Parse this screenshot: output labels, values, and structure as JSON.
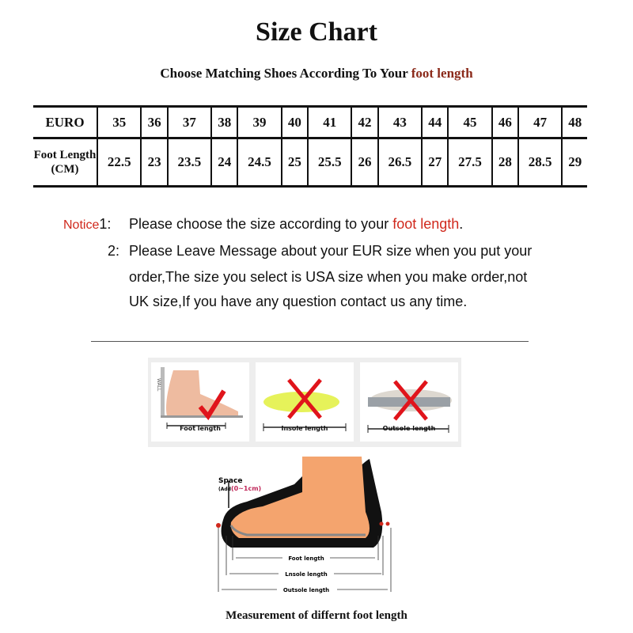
{
  "title": "Size Chart",
  "subtitle": {
    "text": "Choose Matching Shoes According To Your ",
    "highlight": "foot length"
  },
  "table": {
    "row_labels": [
      "EURO",
      "Foot Length (CM)"
    ],
    "euro": [
      "35",
      "36",
      "37",
      "38",
      "39",
      "40",
      "41",
      "42",
      "43",
      "44",
      "45",
      "46",
      "47",
      "48"
    ],
    "foot_length_cm": [
      "22.5",
      "23",
      "23.5",
      "24",
      "24.5",
      "25",
      "25.5",
      "26",
      "26.5",
      "27",
      "27.5",
      "28",
      "28.5",
      "29"
    ]
  },
  "notice": {
    "label": "Notice",
    "item1_num": "1:",
    "item1_text": "Please choose the size according to your ",
    "item1_highlight": "foot length",
    "item1_end": ".",
    "item2_num": "2:",
    "item2_lines": [
      "Please Leave Message about your EUR size when you put your",
      "order,The size you select is USA size when you make order,not",
      "UK size,If you have any question  contact us any time."
    ]
  },
  "methods": [
    {
      "label": "Foot length",
      "mark": "check",
      "wall": "WALL"
    },
    {
      "label": "Insole length",
      "mark": "cross"
    },
    {
      "label": "Outsole length",
      "mark": "cross"
    }
  ],
  "diagram": {
    "space_label": "Space",
    "add_label": "(Add",
    "add_range": "(0~1cm)",
    "lines": [
      "Foot length",
      "Lnsole length",
      "Outsole length"
    ]
  },
  "caption": "Measurement of differnt foot length",
  "colors": {
    "accent_red": "#d0281c",
    "highlight_brown": "#8b2a1a",
    "insole_yellow": "#e6f25a",
    "foot_skin": "#f4a46e"
  }
}
